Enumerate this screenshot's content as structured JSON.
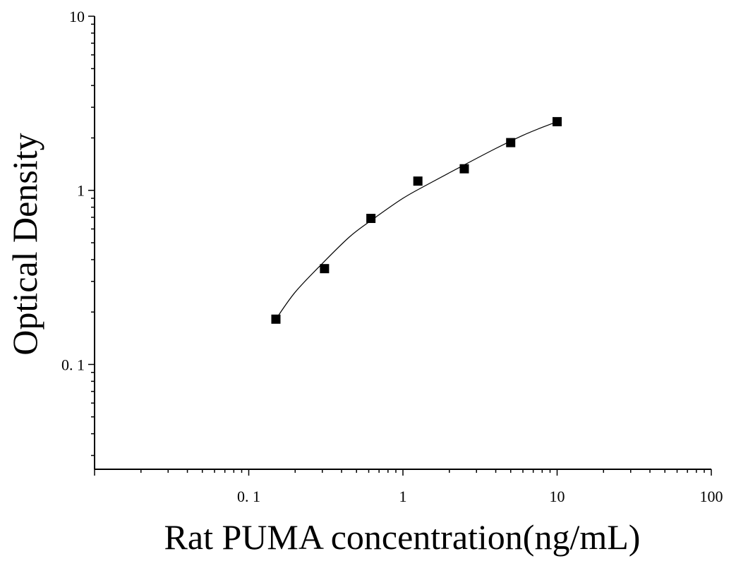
{
  "chart_data": {
    "type": "scatter",
    "title": "",
    "xlabel": "Rat PUMA concentration(ng/mL)",
    "ylabel": "Optical Density",
    "x_scale": "log",
    "y_scale": "log",
    "xlim": [
      0.01,
      100
    ],
    "ylim": [
      0.025,
      10
    ],
    "x_ticks": [
      {
        "value": 0.1,
        "label": "0. 1"
      },
      {
        "value": 1,
        "label": "1"
      },
      {
        "value": 10,
        "label": "10"
      },
      {
        "value": 100,
        "label": "100"
      }
    ],
    "y_ticks": [
      {
        "value": 10,
        "label": "10"
      },
      {
        "value": 1,
        "label": "1"
      },
      {
        "value": 0.1,
        "label": "0. 1"
      }
    ],
    "grid": false,
    "legend": "none",
    "series": [
      {
        "marker": "square",
        "color": "#000000",
        "x": [
          0.15,
          0.31,
          0.62,
          1.25,
          2.5,
          5,
          10
        ],
        "y": [
          0.182,
          0.355,
          0.69,
          1.13,
          1.33,
          1.88,
          2.48
        ]
      }
    ],
    "fit_curve": {
      "color": "#000000",
      "x": [
        0.15,
        0.2,
        0.3,
        0.45,
        0.62,
        1,
        1.5,
        2.5,
        4,
        6,
        8,
        10
      ],
      "y": [
        0.182,
        0.26,
        0.38,
        0.54,
        0.67,
        0.9,
        1.1,
        1.4,
        1.74,
        2.07,
        2.3,
        2.48
      ]
    }
  }
}
